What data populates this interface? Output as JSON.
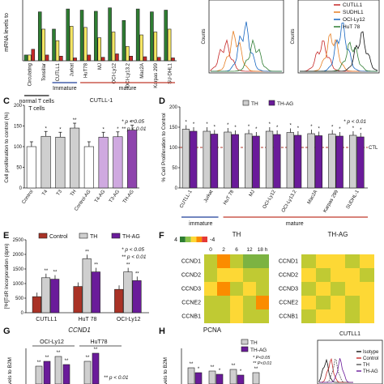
{
  "panel_letters": [
    "C",
    "D",
    "E",
    "F",
    "G",
    "H"
  ],
  "topA": {
    "ylabel": "mRNA levels to",
    "categories": [
      "Circulating",
      "Tonsillar",
      "CUTLL1",
      "Jurkat",
      "HuT78",
      "MJ",
      "OCI-Ly12",
      "OCI-Ly13.2",
      "Mac2A",
      "Karpas 299",
      "SU-DHL1"
    ],
    "groups": [
      {
        "label": "normal T cells",
        "color": "#111111"
      },
      {
        "label": "Immature",
        "color": "#1f3f99"
      },
      {
        "label": "mature",
        "color": "#c0392b"
      }
    ],
    "series_colors": [
      "#2e7d32",
      "#f5e663",
      "#c62828"
    ],
    "values": [
      [
        0.1,
        0.1,
        0.2
      ],
      [
        0.85,
        0.55,
        0.1
      ],
      [
        0.55,
        0.35,
        0.08
      ],
      [
        0.9,
        0.6,
        0.05
      ],
      [
        0.88,
        0.58,
        0.1
      ],
      [
        0.86,
        0.4,
        0.06
      ],
      [
        0.92,
        0.5,
        0.12
      ],
      [
        0.7,
        0.25,
        0.08
      ],
      [
        0.9,
        0.45,
        0.07
      ],
      [
        0.85,
        0.5,
        0.06
      ],
      [
        0.88,
        0.55,
        0.05
      ]
    ]
  },
  "topB": {
    "ylabel": "Counts",
    "legend": [
      "CUTLL1",
      "SUDHL1",
      "OCI-Ly12",
      "HuT 78"
    ],
    "legend_colors": [
      "#c62828",
      "#e67e22",
      "#1565c0",
      "#2e7d32"
    ]
  },
  "chart_data": [
    {
      "panel": "C",
      "type": "bar",
      "title": "CUTLL-1",
      "ylabel": "Cell proliferation to control (%)",
      "categories": [
        "Control",
        "T4",
        "T3",
        "TH",
        "Control-AG",
        "T4-AG",
        "T3-AG",
        "TH-AG"
      ],
      "values": [
        100,
        125,
        123,
        145,
        100,
        123,
        124,
        140
      ],
      "colors": [
        "#ffffff",
        "#cfcfcf",
        "#cfcfcf",
        "#cfcfcf",
        "#ffffff",
        "#cfa9e0",
        "#cfa9e0",
        "#8e44ad"
      ],
      "sig": [
        "",
        "*",
        "*",
        "**",
        "",
        "*",
        "*",
        "**"
      ],
      "ylim": [
        0,
        200
      ],
      "yticks": [
        "0",
        "50",
        "100",
        "150",
        "200"
      ],
      "annotation": [
        "* p < 0.05",
        "** p < 0.01"
      ]
    },
    {
      "panel": "D",
      "type": "bar",
      "ylabel": "% Cell Proliferation to Control",
      "categories": [
        "CUTLL-1",
        "Jurkat",
        "HuT 78",
        "MJ",
        "OCI-Ly12",
        "OCI-Ly13.2",
        "Mac2A",
        "Karpas 299",
        "SUDHL-1"
      ],
      "series": [
        {
          "name": "TH",
          "values": [
            145,
            140,
            138,
            134,
            140,
            137,
            134,
            133,
            130
          ],
          "color": "#cfcfcf"
        },
        {
          "name": "TH-AG",
          "values": [
            140,
            133,
            132,
            128,
            132,
            130,
            129,
            128,
            126
          ],
          "color": "#6a1b9a"
        }
      ],
      "ylim": [
        0,
        200
      ],
      "yticks": [
        "0",
        "50",
        "100",
        "150",
        "200"
      ],
      "ref_line": {
        "value": 100,
        "label": "CTL"
      },
      "annotation": "* p < 0.01",
      "group_labels": [
        {
          "label": "immature",
          "color": "#1f3f99"
        },
        {
          "label": "mature",
          "color": "#c0392b"
        }
      ]
    },
    {
      "panel": "E",
      "type": "bar",
      "ylabel": "[³H]TdR incorporation (dpm)",
      "categories": [
        "CUTLL1",
        "HuT 78",
        "OCI-Ly12"
      ],
      "series": [
        {
          "name": "Control",
          "values": [
            550,
            900,
            800
          ],
          "color": "#a93226"
        },
        {
          "name": "TH",
          "values": [
            1200,
            1850,
            1400
          ],
          "color": "#cfcfcf"
        },
        {
          "name": "TH-AG",
          "values": [
            1150,
            1400,
            1100
          ],
          "color": "#6a1b9a"
        }
      ],
      "ylim": [
        0,
        2500
      ],
      "yticks": [
        "0",
        "500",
        "1000",
        "1500",
        "2000",
        "2500"
      ],
      "annotation": [
        "* p < 0.05",
        "** p < 0.01"
      ]
    },
    {
      "panel": "F",
      "type": "heatmap",
      "colorbar": [
        "4",
        "-4"
      ],
      "columns": [
        "0",
        "2",
        "6",
        "12",
        "18 h"
      ],
      "rows": [
        "CCND1",
        "CCND2",
        "CCND3",
        "CCNE2",
        "CCNB1"
      ],
      "maps": [
        {
          "title": "TH",
          "values": [
            [
              2,
              -2,
              1,
              3,
              3
            ],
            [
              1,
              0,
              -1,
              2,
              2
            ],
            [
              0,
              -3,
              2,
              0,
              1
            ],
            [
              2,
              1,
              0,
              2,
              -2
            ],
            [
              1,
              2,
              0,
              1,
              2
            ]
          ]
        },
        {
          "title": "TH-AG",
          "values": [
            [
              2,
              1,
              0,
              2,
              1
            ],
            [
              1,
              2,
              1,
              1,
              2
            ],
            [
              2,
              1,
              2,
              1,
              1
            ],
            [
              1,
              2,
              1,
              2,
              1
            ],
            [
              2,
              1,
              1,
              2,
              1
            ]
          ]
        }
      ]
    },
    {
      "panel": "G",
      "type": "bar",
      "title": "CCND1",
      "ylabel": "vels to B2M",
      "groups": [
        "OCI-Ly12",
        "HuT78"
      ],
      "annotation": "** p < 0.01"
    },
    {
      "panel": "H",
      "type": "bar",
      "title": "PCNA",
      "ylabel": "vels to B2M",
      "series": [
        {
          "name": "TH",
          "color": "#cfcfcf"
        },
        {
          "name": "TH-AG",
          "color": "#6a1b9a"
        }
      ],
      "annotation": [
        "* P<0.05",
        "** P<0.01"
      ]
    },
    {
      "panel": "H-right",
      "type": "line",
      "title": "CUTLL1",
      "legend": [
        {
          "name": "Isotype",
          "color": "#111111"
        },
        {
          "name": "Control",
          "color": "#c62828"
        },
        {
          "name": "TH",
          "color": "#555555"
        },
        {
          "name": "TH-AG",
          "color": "#6a1b9a"
        }
      ]
    }
  ]
}
